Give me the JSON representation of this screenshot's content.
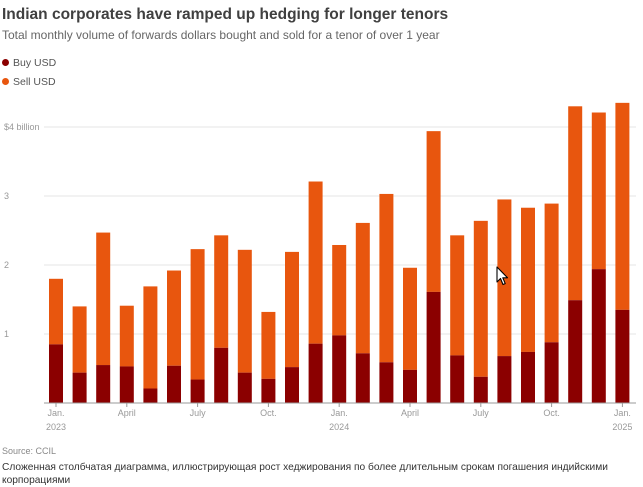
{
  "header": {
    "title": "Indian corporates have ramped up hedging for longer tenors",
    "subtitle": "Total monthly volume of forwards dollars bought and sold for a tenor of over 1 year"
  },
  "legend": [
    {
      "label": "Buy USD",
      "color": "#8b0000"
    },
    {
      "label": "Sell USD",
      "color": "#e8560e"
    }
  ],
  "footer": {
    "source": "Source: CCIL",
    "caption": "Сложенная столбчатая диаграмма, иллюстрирующая рост хеджирования по более длительным срокам погашения индийскими корпорациями"
  },
  "colors": {
    "buy": "#8b0000",
    "sell": "#e8560e",
    "grid": "#e6e6e6",
    "axis": "#999999"
  },
  "chart_data": {
    "type": "bar",
    "stacked": true,
    "categories": [
      "Jan 2023",
      "Feb 2023",
      "Mar 2023",
      "Apr 2023",
      "May 2023",
      "Jun 2023",
      "Jul 2023",
      "Aug 2023",
      "Sep 2023",
      "Oct 2023",
      "Nov 2023",
      "Dec 2023",
      "Jan 2024",
      "Feb 2024",
      "Mar 2024",
      "Apr 2024",
      "May 2024",
      "Jun 2024",
      "Jul 2024",
      "Aug 2024",
      "Sep 2024",
      "Oct 2024",
      "Nov 2024",
      "Dec 2024",
      "Jan 2025"
    ],
    "series": [
      {
        "name": "Buy USD",
        "values": [
          0.85,
          0.44,
          0.55,
          0.53,
          0.21,
          0.54,
          0.34,
          0.8,
          0.44,
          0.35,
          0.52,
          0.86,
          0.98,
          0.72,
          0.59,
          0.48,
          1.61,
          0.69,
          0.38,
          0.68,
          0.74,
          0.88,
          1.49,
          1.94,
          1.35
        ]
      },
      {
        "name": "Sell USD",
        "values": [
          0.95,
          0.96,
          1.92,
          0.88,
          1.48,
          1.38,
          1.89,
          1.63,
          1.78,
          0.97,
          1.67,
          2.35,
          1.31,
          1.89,
          2.44,
          1.48,
          2.33,
          1.74,
          2.26,
          2.27,
          2.09,
          2.01,
          2.81,
          2.27,
          3.0
        ]
      }
    ],
    "ylim": [
      0,
      4
    ],
    "yticks": [
      {
        "value": 1,
        "label": "1"
      },
      {
        "value": 2,
        "label": "2"
      },
      {
        "value": 3,
        "label": "3"
      },
      {
        "value": 4,
        "label": "$4 billion"
      }
    ],
    "xticks": [
      {
        "index": 0,
        "label": "Jan.",
        "sublabel": "2023"
      },
      {
        "index": 3,
        "label": "April",
        "sublabel": ""
      },
      {
        "index": 6,
        "label": "July",
        "sublabel": ""
      },
      {
        "index": 9,
        "label": "Oct.",
        "sublabel": ""
      },
      {
        "index": 12,
        "label": "Jan.",
        "sublabel": "2024"
      },
      {
        "index": 15,
        "label": "April",
        "sublabel": ""
      },
      {
        "index": 18,
        "label": "July",
        "sublabel": ""
      },
      {
        "index": 21,
        "label": "Oct.",
        "sublabel": ""
      },
      {
        "index": 24,
        "label": "Jan.",
        "sublabel": "2025"
      }
    ],
    "grid": true,
    "legend_position": "top-left"
  }
}
